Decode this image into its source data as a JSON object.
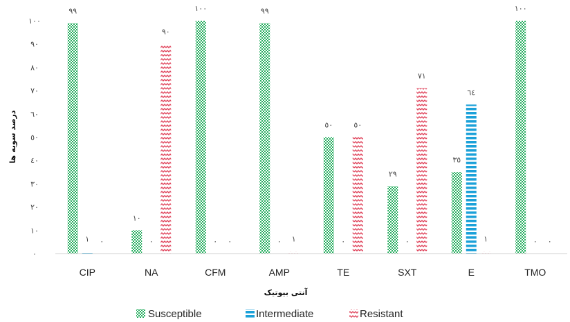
{
  "chart_data": {
    "type": "bar",
    "xlabel": "آنتی بیوتیک",
    "ylabel": "درصد سویه ها",
    "ylim": [
      0,
      100
    ],
    "yticks": [
      "٠",
      "١٠",
      "٢٠",
      "٣٠",
      "٤٠",
      "٥٠",
      "٦٠",
      "٧٠",
      "٨٠",
      "٩٠",
      "١٠٠"
    ],
    "categories": [
      "CIP",
      "NA",
      "CFM",
      "AMP",
      "TE",
      "SXT",
      "E",
      "TMO"
    ],
    "series": [
      {
        "name": "Susceptible",
        "color": "#27ae60",
        "values": [
          99,
          10,
          100,
          99,
          50,
          29,
          35,
          100
        ],
        "labels": [
          "٩٩",
          "١٠",
          "١٠٠",
          "٩٩",
          "٥٠",
          "٢٩",
          "٣٥",
          "١٠٠"
        ]
      },
      {
        "name": "Intermediate",
        "color": "#1ba1d9",
        "values": [
          1,
          0,
          0,
          0,
          0,
          0,
          64,
          0
        ],
        "labels": [
          "١",
          "٠",
          "٠",
          "٠",
          "٠",
          "٠",
          "٦٤",
          "٠"
        ]
      },
      {
        "name": "Resistant",
        "color": "#e0475e",
        "values": [
          0,
          90,
          0,
          1,
          50,
          71,
          1,
          0
        ],
        "labels": [
          "٠",
          "٩٠",
          "٠",
          "١",
          "٥٠",
          "٧١",
          "١",
          "٠"
        ]
      }
    ],
    "grid": false,
    "legend": "bottom"
  }
}
